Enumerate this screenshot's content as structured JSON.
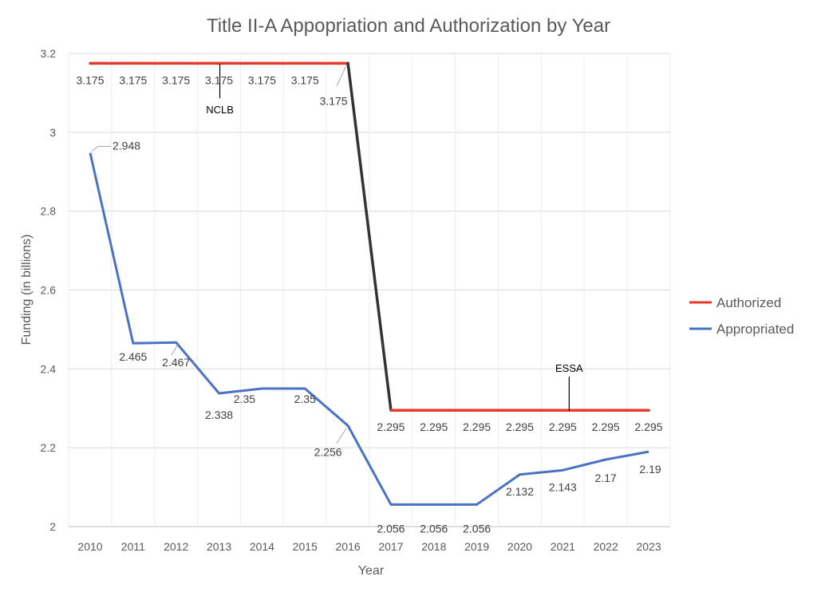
{
  "chart_data": {
    "type": "line",
    "title": "Title II-A Appopriation and Authorization by Year",
    "xlabel": "Year",
    "ylabel": "Funding (in billions)",
    "ylim": [
      2,
      3.2
    ],
    "yticks": [
      "2",
      "2.2",
      "2.4",
      "2.6",
      "2.8",
      "3",
      "3.2"
    ],
    "grid": true,
    "legend_placement": "right",
    "categories": [
      "2010",
      "2011",
      "2012",
      "2013",
      "2014",
      "2015",
      "2016",
      "2017",
      "2018",
      "2019",
      "2020",
      "2021",
      "2022",
      "2023"
    ],
    "series": [
      {
        "name": "Authorized",
        "color": "#e8382b",
        "transition_color": "#333333",
        "values": [
          3.175,
          3.175,
          3.175,
          3.175,
          3.175,
          3.175,
          3.175,
          2.295,
          2.295,
          2.295,
          2.295,
          2.295,
          2.295,
          2.295
        ]
      },
      {
        "name": "Appropriated",
        "color": "#4a72c4",
        "values": [
          2.948,
          2.465,
          2.467,
          2.338,
          2.35,
          2.35,
          2.256,
          2.056,
          2.056,
          2.056,
          2.132,
          2.143,
          2.17,
          2.19
        ]
      }
    ],
    "annotations": [
      {
        "text": "NCLB",
        "year": "2013"
      },
      {
        "text": "ESSA",
        "year": "2021"
      }
    ]
  }
}
